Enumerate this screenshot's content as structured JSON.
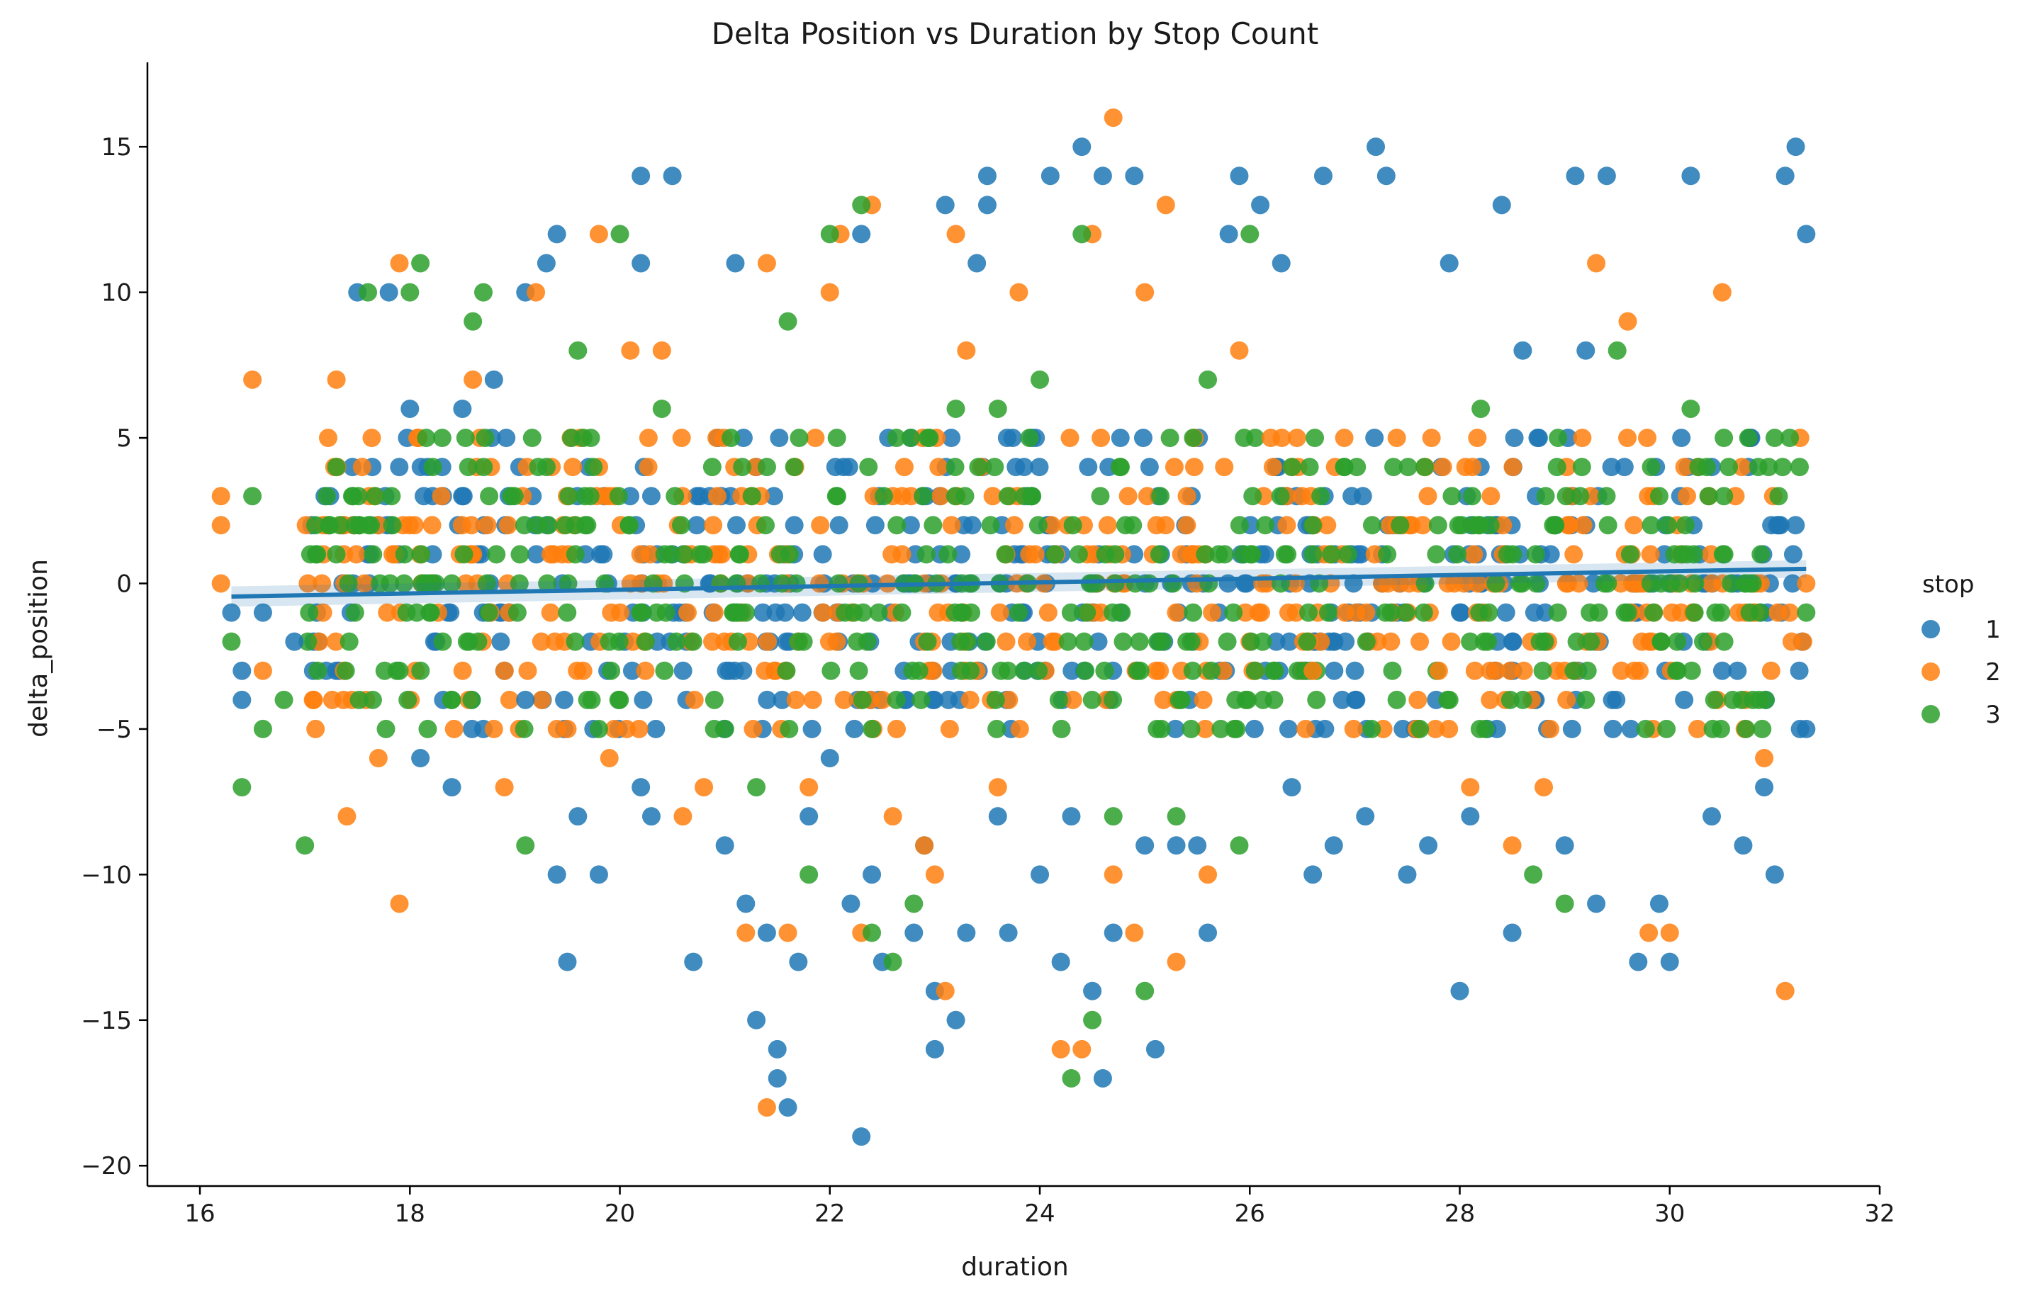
{
  "chart_data": {
    "type": "scatter",
    "title": "Delta Position vs Duration by Stop Count",
    "xlabel": "duration",
    "ylabel": "delta_position",
    "xlim": [
      15.5,
      32.0
    ],
    "ylim": [
      -20.7,
      17.9
    ],
    "xticks": [
      16,
      18,
      20,
      22,
      24,
      26,
      28,
      30,
      32
    ],
    "yticks": [
      -20,
      -15,
      -10,
      -5,
      0,
      5,
      10,
      15
    ],
    "xtick_labels": [
      "16",
      "18",
      "20",
      "22",
      "24",
      "26",
      "28",
      "30",
      "32"
    ],
    "ytick_labels": [
      "−20",
      "−15",
      "−10",
      "−5",
      "0",
      "5",
      "10",
      "15"
    ],
    "grid": false,
    "legend": {
      "title": "stop",
      "placement": "right"
    },
    "series": [
      {
        "name": "1",
        "color": "#1f77b4",
        "points": [
          [
            16.3,
            -1
          ],
          [
            16.4,
            -3
          ],
          [
            16.4,
            -4
          ],
          [
            16.6,
            -1
          ],
          [
            16.9,
            -2
          ],
          [
            17.5,
            10
          ],
          [
            17.8,
            10
          ],
          [
            18.0,
            6
          ],
          [
            18.1,
            -6
          ],
          [
            18.4,
            -7
          ],
          [
            18.5,
            6
          ],
          [
            18.7,
            -5
          ],
          [
            18.8,
            7
          ],
          [
            19.1,
            -4
          ],
          [
            19.1,
            10
          ],
          [
            19.3,
            11
          ],
          [
            19.4,
            12
          ],
          [
            19.4,
            -10
          ],
          [
            19.5,
            -13
          ],
          [
            19.6,
            -8
          ],
          [
            19.8,
            -10
          ],
          [
            20.2,
            -7
          ],
          [
            20.2,
            11
          ],
          [
            20.2,
            14
          ],
          [
            20.3,
            -8
          ],
          [
            20.5,
            14
          ],
          [
            20.7,
            -13
          ],
          [
            21.0,
            -9
          ],
          [
            21.1,
            11
          ],
          [
            21.2,
            -11
          ],
          [
            21.3,
            -15
          ],
          [
            21.4,
            -12
          ],
          [
            21.5,
            -17
          ],
          [
            21.5,
            -16
          ],
          [
            21.6,
            -18
          ],
          [
            21.7,
            -13
          ],
          [
            21.8,
            -8
          ],
          [
            22.0,
            -6
          ],
          [
            22.2,
            -11
          ],
          [
            22.3,
            -19
          ],
          [
            22.3,
            12
          ],
          [
            22.4,
            -10
          ],
          [
            22.5,
            -13
          ],
          [
            22.8,
            -12
          ],
          [
            22.9,
            -9
          ],
          [
            23.0,
            -14
          ],
          [
            23.0,
            -16
          ],
          [
            23.1,
            13
          ],
          [
            23.2,
            -15
          ],
          [
            23.3,
            -12
          ],
          [
            23.4,
            11
          ],
          [
            23.5,
            14
          ],
          [
            23.5,
            13
          ],
          [
            23.6,
            -8
          ],
          [
            23.7,
            -12
          ],
          [
            24.0,
            -10
          ],
          [
            24.1,
            14
          ],
          [
            24.2,
            -13
          ],
          [
            24.3,
            -8
          ],
          [
            24.4,
            15
          ],
          [
            24.5,
            -14
          ],
          [
            24.6,
            14
          ],
          [
            24.6,
            -17
          ],
          [
            24.7,
            -12
          ],
          [
            24.9,
            14
          ],
          [
            25.0,
            -9
          ],
          [
            25.1,
            -16
          ],
          [
            25.3,
            -9
          ],
          [
            25.5,
            -9
          ],
          [
            25.6,
            -12
          ],
          [
            25.8,
            12
          ],
          [
            25.9,
            14
          ],
          [
            26.1,
            13
          ],
          [
            26.3,
            11
          ],
          [
            26.4,
            -7
          ],
          [
            26.6,
            -10
          ],
          [
            26.7,
            14
          ],
          [
            26.8,
            -9
          ],
          [
            27.1,
            -8
          ],
          [
            27.2,
            15
          ],
          [
            27.3,
            14
          ],
          [
            27.5,
            -10
          ],
          [
            27.7,
            -9
          ],
          [
            27.9,
            11
          ],
          [
            28.0,
            -14
          ],
          [
            28.1,
            -8
          ],
          [
            28.4,
            13
          ],
          [
            28.5,
            -12
          ],
          [
            28.6,
            8
          ],
          [
            29.0,
            -9
          ],
          [
            29.1,
            14
          ],
          [
            29.2,
            8
          ],
          [
            29.3,
            -11
          ],
          [
            29.4,
            14
          ],
          [
            29.7,
            -13
          ],
          [
            29.9,
            -11
          ],
          [
            30.0,
            -13
          ],
          [
            30.2,
            14
          ],
          [
            30.4,
            -8
          ],
          [
            30.7,
            -9
          ],
          [
            30.9,
            -7
          ],
          [
            31.0,
            -10
          ],
          [
            31.1,
            14
          ],
          [
            31.2,
            15
          ],
          [
            31.3,
            12
          ],
          [
            31.3,
            -5
          ]
        ]
      },
      {
        "name": "2",
        "color": "#ff7f0e",
        "points": [
          [
            16.2,
            3
          ],
          [
            16.2,
            2
          ],
          [
            16.2,
            0
          ],
          [
            16.5,
            7
          ],
          [
            16.6,
            -3
          ],
          [
            17.3,
            7
          ],
          [
            17.4,
            -8
          ],
          [
            17.7,
            -6
          ],
          [
            17.9,
            11
          ],
          [
            17.9,
            -11
          ],
          [
            18.3,
            3
          ],
          [
            18.6,
            7
          ],
          [
            18.8,
            -5
          ],
          [
            18.9,
            -7
          ],
          [
            19.2,
            10
          ],
          [
            19.5,
            -5
          ],
          [
            19.8,
            12
          ],
          [
            19.9,
            -6
          ],
          [
            20.1,
            8
          ],
          [
            20.4,
            8
          ],
          [
            20.6,
            -8
          ],
          [
            20.8,
            -7
          ],
          [
            21.2,
            -12
          ],
          [
            21.4,
            11
          ],
          [
            21.4,
            -18
          ],
          [
            21.6,
            -12
          ],
          [
            21.8,
            -7
          ],
          [
            22.0,
            10
          ],
          [
            22.1,
            12
          ],
          [
            22.3,
            -12
          ],
          [
            22.4,
            13
          ],
          [
            22.6,
            -8
          ],
          [
            22.9,
            -9
          ],
          [
            23.0,
            -10
          ],
          [
            23.1,
            -14
          ],
          [
            23.2,
            12
          ],
          [
            23.3,
            8
          ],
          [
            23.6,
            -7
          ],
          [
            23.8,
            10
          ],
          [
            24.2,
            -16
          ],
          [
            24.4,
            -16
          ],
          [
            24.5,
            12
          ],
          [
            24.7,
            16
          ],
          [
            24.7,
            -10
          ],
          [
            24.9,
            -12
          ],
          [
            25.0,
            10
          ],
          [
            25.2,
            13
          ],
          [
            25.3,
            -13
          ],
          [
            25.6,
            -10
          ],
          [
            25.9,
            8
          ],
          [
            26.2,
            5
          ],
          [
            26.6,
            -3
          ],
          [
            26.9,
            5
          ],
          [
            27.4,
            5
          ],
          [
            27.8,
            -3
          ],
          [
            28.1,
            -7
          ],
          [
            28.5,
            -9
          ],
          [
            28.8,
            -7
          ],
          [
            29.3,
            11
          ],
          [
            29.6,
            9
          ],
          [
            29.8,
            -12
          ],
          [
            30.0,
            -12
          ],
          [
            30.5,
            10
          ],
          [
            30.9,
            -6
          ],
          [
            31.1,
            -14
          ],
          [
            31.3,
            0
          ]
        ]
      },
      {
        "name": "3",
        "color": "#2ca02c",
        "points": [
          [
            16.3,
            -2
          ],
          [
            16.4,
            -7
          ],
          [
            16.5,
            3
          ],
          [
            16.6,
            -5
          ],
          [
            16.8,
            -4
          ],
          [
            17.0,
            -9
          ],
          [
            17.1,
            2
          ],
          [
            17.3,
            4
          ],
          [
            17.6,
            10
          ],
          [
            17.9,
            -3
          ],
          [
            18.0,
            10
          ],
          [
            18.1,
            11
          ],
          [
            18.4,
            -4
          ],
          [
            18.6,
            9
          ],
          [
            18.7,
            10
          ],
          [
            19.1,
            -9
          ],
          [
            19.6,
            8
          ],
          [
            19.8,
            -5
          ],
          [
            20.0,
            12
          ],
          [
            20.4,
            6
          ],
          [
            20.9,
            -4
          ],
          [
            21.3,
            -7
          ],
          [
            21.6,
            9
          ],
          [
            21.8,
            -10
          ],
          [
            22.0,
            12
          ],
          [
            22.3,
            13
          ],
          [
            22.4,
            -12
          ],
          [
            22.6,
            -13
          ],
          [
            22.8,
            -11
          ],
          [
            23.2,
            6
          ],
          [
            23.6,
            6
          ],
          [
            24.0,
            7
          ],
          [
            24.3,
            -17
          ],
          [
            24.4,
            12
          ],
          [
            24.5,
            -15
          ],
          [
            24.7,
            -8
          ],
          [
            25.0,
            -14
          ],
          [
            25.3,
            -8
          ],
          [
            25.6,
            7
          ],
          [
            25.9,
            -9
          ],
          [
            26.0,
            12
          ],
          [
            26.4,
            4
          ],
          [
            26.9,
            4
          ],
          [
            27.4,
            -4
          ],
          [
            27.9,
            -4
          ],
          [
            28.2,
            6
          ],
          [
            28.7,
            -10
          ],
          [
            29.0,
            -11
          ],
          [
            29.2,
            -4
          ],
          [
            29.5,
            8
          ],
          [
            29.9,
            3
          ],
          [
            30.2,
            6
          ],
          [
            30.6,
            -4
          ],
          [
            31.0,
            5
          ],
          [
            31.3,
            -1
          ]
        ]
      }
    ],
    "dense_band": {
      "series_order": [
        "1",
        "2",
        "3"
      ],
      "x_range": [
        17.0,
        31.3
      ],
      "y_values": [
        -5,
        -4,
        -3,
        -2,
        -1,
        0,
        1,
        2,
        3,
        4,
        5
      ]
    },
    "regression": {
      "x_range": [
        16.3,
        31.3
      ],
      "y_at_start": -0.45,
      "y_at_end": 0.5,
      "color": "#1f77b4"
    }
  }
}
